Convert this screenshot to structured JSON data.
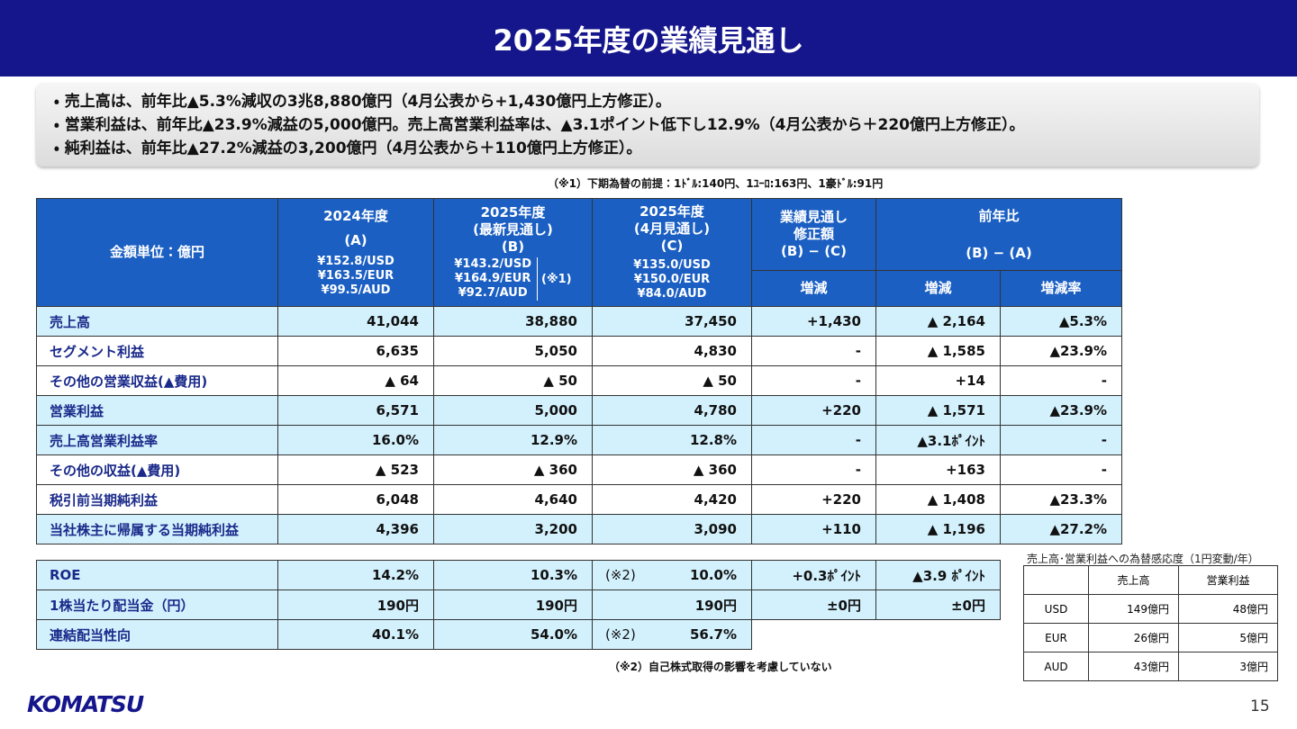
{
  "header": {
    "title": "2025年度の業績見通し"
  },
  "summary": [
    "・ 売上高は、前年比▲5.3%減収の3兆8,880億円（4月公表から+1,430億円上方修正）。",
    "・ 営業利益は、前年比▲23.9%減益の5,000億円。売上高営業利益率は、▲3.1ポイント低下し12.9%（4月公表から＋220億円上方修正）。",
    "・ 純利益は、前年比▲27.2%減益の3,200億円（4月公表から＋110億円上方修正）。"
  ],
  "note1": "（※1）下期為替の前提：1ﾄﾞﾙ:140円、1ﾕｰﾛ:163円、1豪ﾄﾞﾙ:91円",
  "main_table": {
    "unit_label": "金額単位：億円",
    "columns": [
      {
        "lines": [
          "2024年度",
          "(A)"
        ],
        "rates": [
          "¥152.8/USD",
          "¥163.5/EUR",
          "¥99.5/AUD"
        ]
      },
      {
        "lines": [
          "2025年度",
          "(最新見通し)",
          "(B)"
        ],
        "rates": [
          "¥143.2/USD",
          "¥164.9/EUR",
          "¥92.7/AUD"
        ],
        "note": "(※1)"
      },
      {
        "lines": [
          "2025年度",
          "(4月見通し)",
          "(C)"
        ],
        "rates": [
          "¥135.0/USD",
          "¥150.0/EUR",
          "¥84.0/AUD"
        ]
      },
      {
        "lines": [
          "業績見通し",
          "修正額",
          "(B) − (C)"
        ],
        "sub": "増減"
      },
      {
        "lines": [
          "前年比",
          "(B) − (A)"
        ],
        "subs": [
          "増減",
          "増減率"
        ]
      }
    ],
    "rows": [
      [
        "売上高",
        "41,044",
        "38,880",
        "37,450",
        "+1,430",
        "▲ 2,164",
        "▲5.3%"
      ],
      [
        "セグメント利益",
        "6,635",
        "5,050",
        "4,830",
        "-",
        "▲ 1,585",
        "▲23.9%"
      ],
      [
        "その他の営業収益(▲費用)",
        "▲ 64",
        "▲ 50",
        "▲ 50",
        "-",
        "+14",
        "-"
      ],
      [
        "営業利益",
        "6,571",
        "5,000",
        "4,780",
        "+220",
        "▲ 1,571",
        "▲23.9%"
      ],
      [
        "売上高営業利益率",
        "16.0%",
        "12.9%",
        "12.8%",
        "-",
        "▲3.1ﾎﾟｲﾝﾄ",
        "-"
      ],
      [
        "その他の収益(▲費用)",
        "▲ 523",
        "▲ 360",
        "▲ 360",
        "-",
        "+163",
        "-"
      ],
      [
        "税引前当期純利益",
        "6,048",
        "4,640",
        "4,420",
        "+220",
        "▲ 1,408",
        "▲23.3%"
      ],
      [
        "当社株主に帰属する当期純利益",
        "4,396",
        "3,200",
        "3,090",
        "+110",
        "▲ 1,196",
        "▲27.2%"
      ]
    ]
  },
  "ratio_table": {
    "rows": [
      {
        "cells": [
          "ROE",
          "14.2%",
          "10.3%",
          "10.0%",
          "+0.3ﾎﾟｲﾝﾄ",
          "▲3.9 ﾎﾟｲﾝﾄ"
        ],
        "note": "(※2)"
      },
      {
        "cells": [
          "1株当たり配当金（円）",
          "190円",
          "190円",
          "190円",
          "±0円",
          "±0円"
        ]
      },
      {
        "cells": [
          "連結配当性向",
          "40.1%",
          "54.0%",
          "56.7%"
        ],
        "note": "(※2)"
      }
    ]
  },
  "note2": "（※2）自己株式取得の影響を考慮していない",
  "sensitivity": {
    "title": "売上高･営業利益への為替感応度（1円変動/年）",
    "header": [
      "売上高",
      "営業利益"
    ],
    "rows": [
      [
        "USD",
        "149億円",
        "48億円"
      ],
      [
        "EUR",
        "26億円",
        "5億円"
      ],
      [
        "AUD",
        "43億円",
        "3億円"
      ]
    ]
  },
  "footer": {
    "logo": "KOMATSU",
    "page": "15"
  }
}
